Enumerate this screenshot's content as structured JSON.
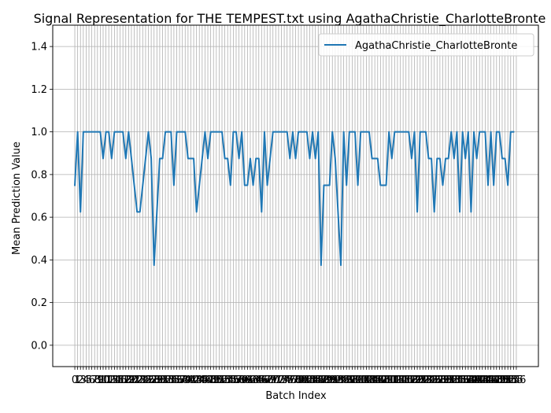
{
  "chart_data": {
    "type": "line",
    "title": "Signal Representation for THE TEMPEST.txt using AgathaChristie_CharlotteBronte",
    "xlabel": "Batch Index",
    "ylabel": "Mean Prediction Value",
    "xlim": [
      -7.8,
      163.8
    ],
    "ylim": [
      -0.1,
      1.5
    ],
    "yticks": [
      0.0,
      0.2,
      0.4,
      0.6,
      0.8,
      1.0,
      1.2,
      1.4
    ],
    "ytick_labels": [
      "0.0",
      "0.2",
      "0.4",
      "0.6",
      "0.8",
      "1.0",
      "1.2",
      "1.4"
    ],
    "x_tick_count": 157,
    "grid": true,
    "legend_position": "upper right",
    "series": [
      {
        "name": "AgathaChristie_CharlotteBronte",
        "color": "#1f77b4",
        "values": [
          0.75,
          1.0,
          0.625,
          1.0,
          1.0,
          1.0,
          1.0,
          1.0,
          1.0,
          1.0,
          0.875,
          1.0,
          1.0,
          0.875,
          1.0,
          1.0,
          1.0,
          1.0,
          0.875,
          1.0,
          0.875,
          0.75,
          0.625,
          0.625,
          0.75,
          0.875,
          1.0,
          0.875,
          0.375,
          0.625,
          0.875,
          0.875,
          1.0,
          1.0,
          1.0,
          0.75,
          1.0,
          1.0,
          1.0,
          1.0,
          0.875,
          0.875,
          0.875,
          0.625,
          0.75,
          0.875,
          1.0,
          0.875,
          1.0,
          1.0,
          1.0,
          1.0,
          1.0,
          0.875,
          0.875,
          0.75,
          1.0,
          1.0,
          0.875,
          1.0,
          0.75,
          0.75,
          0.875,
          0.75,
          0.875,
          0.875,
          0.625,
          1.0,
          0.75,
          0.875,
          1.0,
          1.0,
          1.0,
          1.0,
          1.0,
          1.0,
          0.875,
          1.0,
          0.875,
          1.0,
          1.0,
          1.0,
          1.0,
          0.875,
          1.0,
          0.875,
          1.0,
          0.375,
          0.75,
          0.75,
          0.75,
          1.0,
          0.875,
          0.625,
          0.375,
          1.0,
          0.75,
          1.0,
          1.0,
          1.0,
          0.75,
          1.0,
          1.0,
          1.0,
          1.0,
          0.875,
          0.875,
          0.875,
          0.75,
          0.75,
          0.75,
          1.0,
          0.875,
          1.0,
          1.0,
          1.0,
          1.0,
          1.0,
          1.0,
          0.875,
          1.0,
          0.625,
          1.0,
          1.0,
          1.0,
          0.875,
          0.875,
          0.625,
          0.875,
          0.875,
          0.75,
          0.875,
          0.875,
          1.0,
          0.875,
          1.0,
          0.625,
          1.0,
          0.875,
          1.0,
          0.625,
          1.0,
          0.875,
          1.0,
          1.0,
          1.0,
          0.75,
          1.0,
          0.75,
          1.0,
          1.0,
          0.875,
          0.875,
          0.75,
          1.0,
          1.0
        ]
      }
    ]
  }
}
